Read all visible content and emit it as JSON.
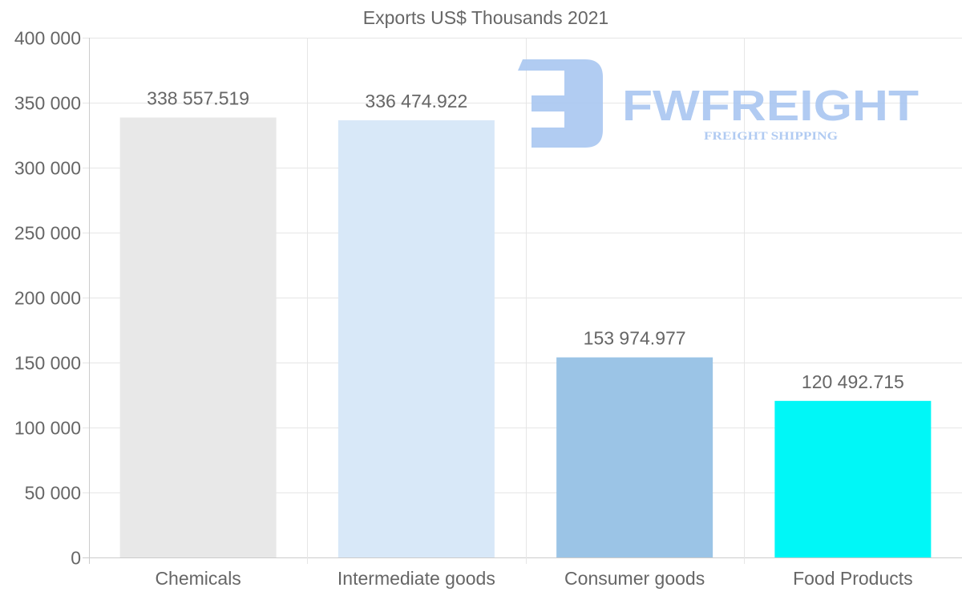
{
  "chart_data": {
    "type": "bar",
    "title": "Exports US$ Thousands 2021",
    "categories": [
      "Chemicals",
      "Intermediate goods",
      "Consumer goods",
      "Food Products"
    ],
    "values": [
      338557.519,
      336474.922,
      153974.977,
      120492.715
    ],
    "data_labels": [
      "338 557.519",
      "336 474.922",
      "153 974.977",
      "120 492.715"
    ],
    "colors": [
      "#e8e8e8",
      "#d8e8f8",
      "#9bc4e6",
      "#00f7f7"
    ],
    "ylim": [
      0,
      400000
    ],
    "yticks": [
      0,
      50000,
      100000,
      150000,
      200000,
      250000,
      300000,
      350000,
      400000
    ],
    "ytick_labels": [
      "0",
      "50 000",
      "100 000",
      "150 000",
      "200 000",
      "250 000",
      "300 000",
      "350 000",
      "400 000"
    ],
    "xlabel": "",
    "ylabel": "",
    "grid": true,
    "legend": "none"
  },
  "watermark": {
    "brand": "FWFREIGHT",
    "tagline": "FREIGHT SHIPPING",
    "color": "#a9c6f1"
  }
}
